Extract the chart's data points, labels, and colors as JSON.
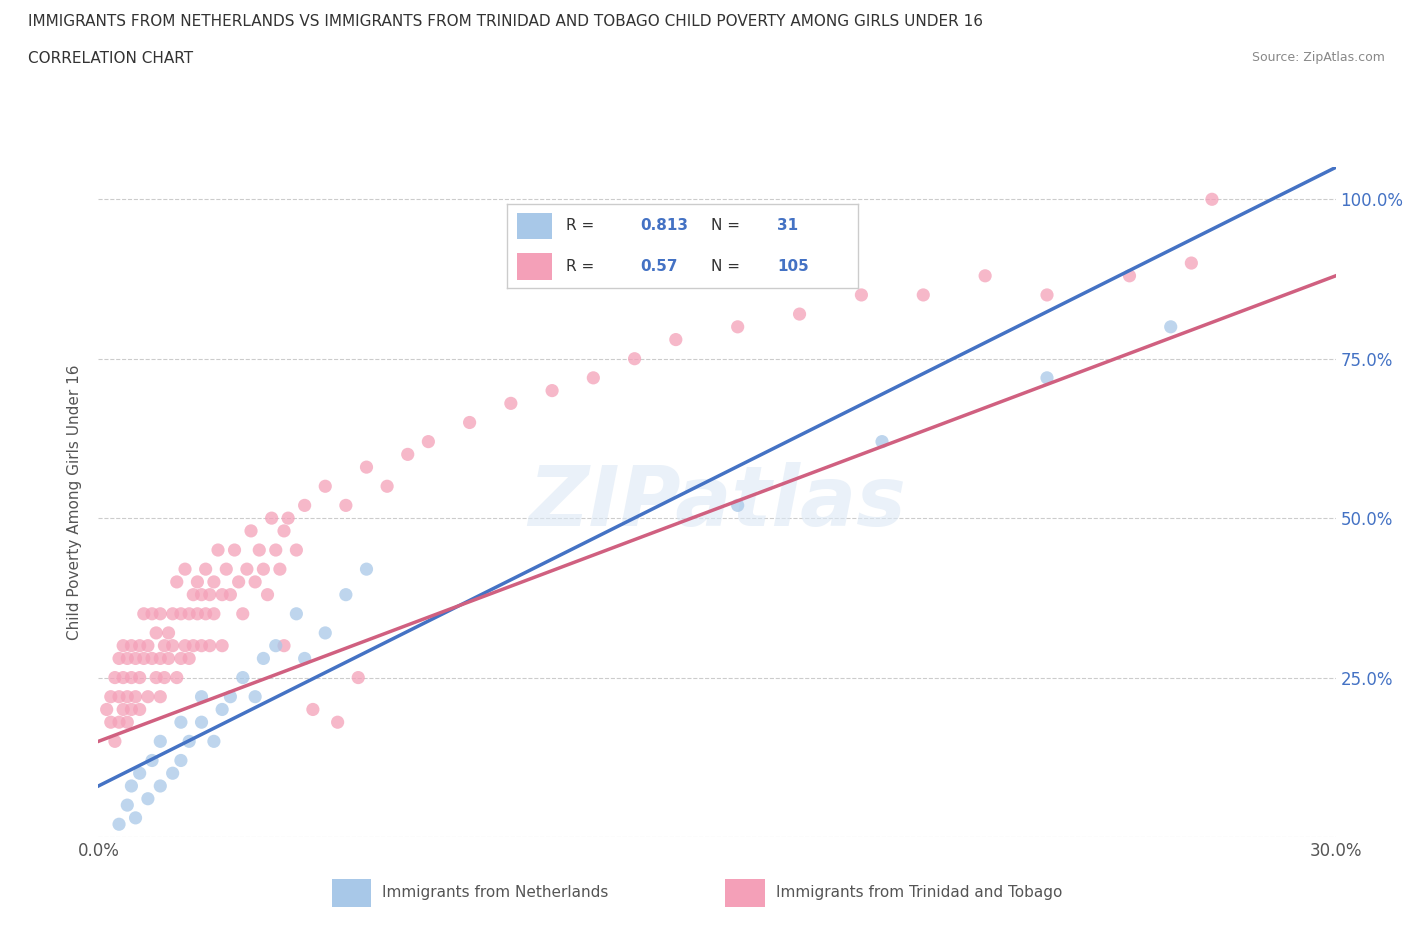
{
  "title": "IMMIGRANTS FROM NETHERLANDS VS IMMIGRANTS FROM TRINIDAD AND TOBAGO CHILD POVERTY AMONG GIRLS UNDER 16",
  "subtitle": "CORRELATION CHART",
  "source": "Source: ZipAtlas.com",
  "ylabel": "Child Poverty Among Girls Under 16",
  "xlim": [
    0.0,
    0.3
  ],
  "ylim": [
    0.0,
    1.05
  ],
  "xticks": [
    0.0,
    0.05,
    0.1,
    0.15,
    0.2,
    0.25,
    0.3
  ],
  "xticklabels": [
    "0.0%",
    "",
    "",
    "",
    "",
    "",
    "30.0%"
  ],
  "yticks": [
    0.0,
    0.25,
    0.5,
    0.75,
    1.0
  ],
  "yticklabels": [
    "",
    "25.0%",
    "50.0%",
    "75.0%",
    "100.0%"
  ],
  "watermark": "ZIPatlas",
  "netherlands_color": "#a8c8e8",
  "trinidad_color": "#f4a0b8",
  "netherlands_line_color": "#4472c4",
  "trinidad_line_color": "#d06080",
  "R_netherlands": 0.813,
  "N_netherlands": 31,
  "R_trinidad": 0.57,
  "N_trinidad": 105,
  "legend_labels": [
    "Immigrants from Netherlands",
    "Immigrants from Trinidad and Tobago"
  ],
  "nl_line_x0": 0.0,
  "nl_line_y0": 0.08,
  "nl_line_x1": 0.3,
  "nl_line_y1": 1.05,
  "tt_line_x0": 0.0,
  "tt_line_y0": 0.15,
  "tt_line_x1": 0.3,
  "tt_line_y1": 0.88,
  "nl_scatter_x": [
    0.005,
    0.007,
    0.008,
    0.009,
    0.01,
    0.012,
    0.013,
    0.015,
    0.015,
    0.018,
    0.02,
    0.02,
    0.022,
    0.025,
    0.025,
    0.028,
    0.03,
    0.032,
    0.035,
    0.038,
    0.04,
    0.043,
    0.048,
    0.05,
    0.055,
    0.06,
    0.065,
    0.155,
    0.19,
    0.23,
    0.26
  ],
  "nl_scatter_y": [
    0.02,
    0.05,
    0.08,
    0.03,
    0.1,
    0.06,
    0.12,
    0.08,
    0.15,
    0.1,
    0.12,
    0.18,
    0.15,
    0.18,
    0.22,
    0.15,
    0.2,
    0.22,
    0.25,
    0.22,
    0.28,
    0.3,
    0.35,
    0.28,
    0.32,
    0.38,
    0.42,
    0.52,
    0.62,
    0.72,
    0.8
  ],
  "tt_scatter_x": [
    0.002,
    0.003,
    0.003,
    0.004,
    0.004,
    0.005,
    0.005,
    0.005,
    0.006,
    0.006,
    0.006,
    0.007,
    0.007,
    0.007,
    0.008,
    0.008,
    0.008,
    0.009,
    0.009,
    0.01,
    0.01,
    0.01,
    0.011,
    0.011,
    0.012,
    0.012,
    0.013,
    0.013,
    0.014,
    0.014,
    0.015,
    0.015,
    0.015,
    0.016,
    0.016,
    0.017,
    0.017,
    0.018,
    0.018,
    0.019,
    0.019,
    0.02,
    0.02,
    0.021,
    0.021,
    0.022,
    0.022,
    0.023,
    0.023,
    0.024,
    0.024,
    0.025,
    0.025,
    0.026,
    0.026,
    0.027,
    0.027,
    0.028,
    0.028,
    0.029,
    0.03,
    0.03,
    0.031,
    0.032,
    0.033,
    0.034,
    0.035,
    0.036,
    0.037,
    0.038,
    0.039,
    0.04,
    0.041,
    0.042,
    0.043,
    0.044,
    0.045,
    0.046,
    0.048,
    0.05,
    0.055,
    0.06,
    0.065,
    0.07,
    0.075,
    0.08,
    0.09,
    0.1,
    0.11,
    0.12,
    0.13,
    0.14,
    0.155,
    0.17,
    0.185,
    0.2,
    0.215,
    0.23,
    0.25,
    0.265,
    0.27,
    0.045,
    0.052,
    0.058,
    0.063
  ],
  "tt_scatter_y": [
    0.2,
    0.22,
    0.18,
    0.25,
    0.15,
    0.28,
    0.22,
    0.18,
    0.25,
    0.2,
    0.3,
    0.22,
    0.18,
    0.28,
    0.25,
    0.3,
    0.2,
    0.28,
    0.22,
    0.25,
    0.3,
    0.2,
    0.28,
    0.35,
    0.22,
    0.3,
    0.35,
    0.28,
    0.25,
    0.32,
    0.22,
    0.28,
    0.35,
    0.3,
    0.25,
    0.32,
    0.28,
    0.35,
    0.3,
    0.25,
    0.4,
    0.28,
    0.35,
    0.3,
    0.42,
    0.35,
    0.28,
    0.38,
    0.3,
    0.35,
    0.4,
    0.3,
    0.38,
    0.35,
    0.42,
    0.38,
    0.3,
    0.4,
    0.35,
    0.45,
    0.38,
    0.3,
    0.42,
    0.38,
    0.45,
    0.4,
    0.35,
    0.42,
    0.48,
    0.4,
    0.45,
    0.42,
    0.38,
    0.5,
    0.45,
    0.42,
    0.48,
    0.5,
    0.45,
    0.52,
    0.55,
    0.52,
    0.58,
    0.55,
    0.6,
    0.62,
    0.65,
    0.68,
    0.7,
    0.72,
    0.75,
    0.78,
    0.8,
    0.82,
    0.85,
    0.85,
    0.88,
    0.85,
    0.88,
    0.9,
    1.0,
    0.3,
    0.2,
    0.18,
    0.25
  ]
}
